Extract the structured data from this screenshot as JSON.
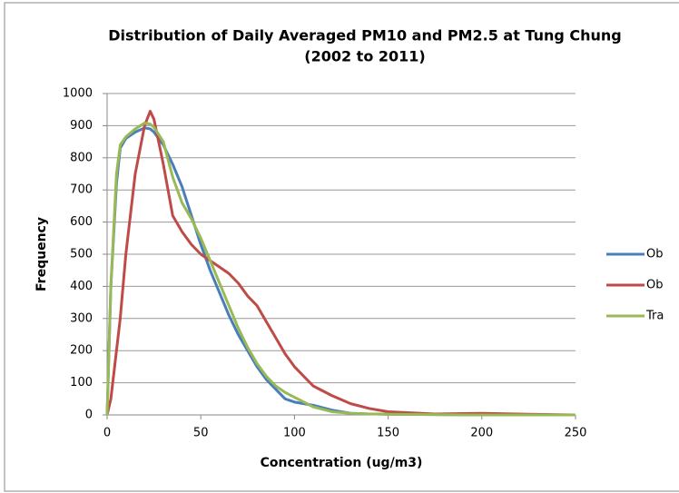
{
  "chart_data": {
    "type": "line",
    "title": [
      "Distribution of Daily Averaged PM10 and PM2.5 at Tung Chung",
      "(2002 to 2011)"
    ],
    "x_label": "Concentration (ug/m3)",
    "y_label": "Frequency",
    "x": [
      0,
      2,
      5,
      7,
      10,
      15,
      20,
      23,
      25,
      30,
      35,
      40,
      45,
      50,
      55,
      60,
      65,
      70,
      75,
      80,
      85,
      90,
      95,
      100,
      105,
      110,
      120,
      130,
      140,
      150,
      175,
      200,
      225,
      250
    ],
    "series": [
      {
        "name": "Ob",
        "color": "#4a7ebb",
        "values": [
          0,
          400,
          720,
          830,
          860,
          880,
          893,
          890,
          880,
          840,
          780,
          710,
          620,
          530,
          450,
          380,
          310,
          250,
          200,
          150,
          110,
          80,
          50,
          40,
          35,
          30,
          15,
          5,
          3,
          2,
          1,
          0,
          0,
          0
        ]
      },
      {
        "name": "Ob",
        "color": "#be4b48",
        "values": [
          0,
          50,
          200,
          300,
          500,
          750,
          900,
          945,
          920,
          780,
          620,
          570,
          530,
          500,
          480,
          460,
          440,
          410,
          370,
          340,
          290,
          240,
          190,
          150,
          120,
          90,
          60,
          35,
          20,
          10,
          3,
          5,
          2,
          0
        ]
      },
      {
        "name": "Tra",
        "color": "#98b954",
        "values": [
          0,
          400,
          750,
          840,
          865,
          890,
          908,
          905,
          895,
          850,
          740,
          660,
          610,
          550,
          480,
          410,
          340,
          270,
          210,
          160,
          120,
          90,
          70,
          55,
          40,
          25,
          10,
          5,
          3,
          2,
          1,
          0,
          0,
          0
        ]
      }
    ],
    "xlim": [
      0,
      250
    ],
    "xticks": [
      0,
      50,
      100,
      150,
      200,
      250
    ],
    "ylim": [
      0,
      1000
    ],
    "yticks": [
      0,
      100,
      200,
      300,
      400,
      500,
      600,
      700,
      800,
      900,
      1000
    ],
    "grid": true,
    "legend": "right"
  }
}
